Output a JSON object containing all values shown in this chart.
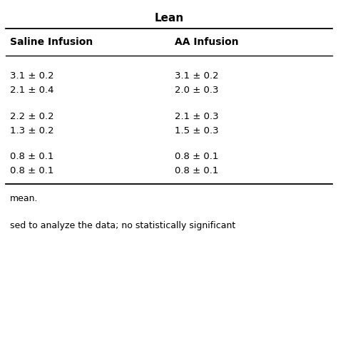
{
  "title": "Lean",
  "col1_header": "Saline Infusion",
  "col2_header": "AA Infusion",
  "rows": [
    [
      "3.1 ± 0.2",
      "3.1 ± 0.2"
    ],
    [
      "2.1 ± 0.4",
      "2.0 ± 0.3"
    ],
    [
      "2.2 ± 0.2",
      "2.1 ± 0.3"
    ],
    [
      "1.3 ± 0.2",
      "1.5 ± 0.3"
    ],
    [
      "0.8 ± 0.1",
      "0.8 ± 0.1"
    ],
    [
      "0.8 ± 0.1",
      "0.8 ± 0.1"
    ]
  ],
  "footer1": "mean.",
  "footer2": "sed to analyze the data; no statistically significant",
  "bg_color": "#ffffff",
  "text_color": "#000000",
  "title_fontsize": 11,
  "header_fontsize": 10,
  "cell_fontsize": 9.5,
  "footer_fontsize": 9
}
